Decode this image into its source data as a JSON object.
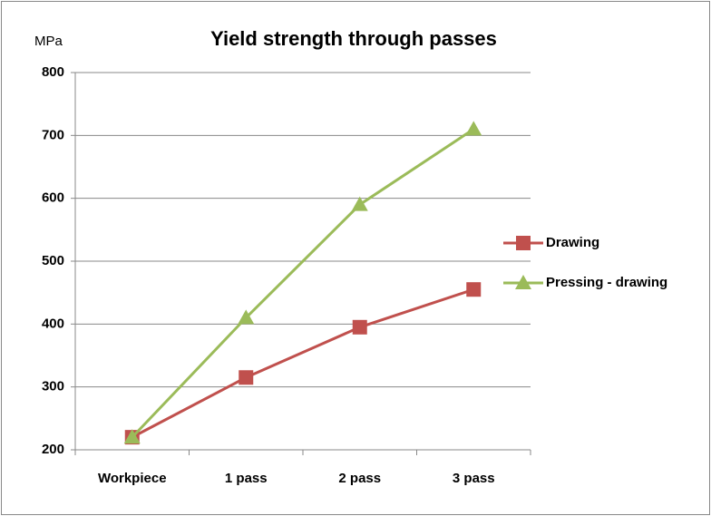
{
  "chart_data": {
    "type": "line",
    "title": "Yield strength through passes",
    "y_label": "MPa",
    "categories": [
      "Workpiece",
      "1 pass",
      "2 pass",
      "3 pass"
    ],
    "series": [
      {
        "name": "Drawing",
        "color": "#c0504d",
        "marker": "square",
        "values": [
          220,
          315,
          395,
          455
        ]
      },
      {
        "name": "Pressing - drawing",
        "color": "#9bbb59",
        "marker": "triangle",
        "values": [
          220,
          410,
          590,
          710
        ]
      }
    ],
    "ylim": [
      200,
      800
    ],
    "yticks": [
      200,
      300,
      400,
      500,
      600,
      700,
      800
    ],
    "grid": true,
    "legend": "right"
  }
}
